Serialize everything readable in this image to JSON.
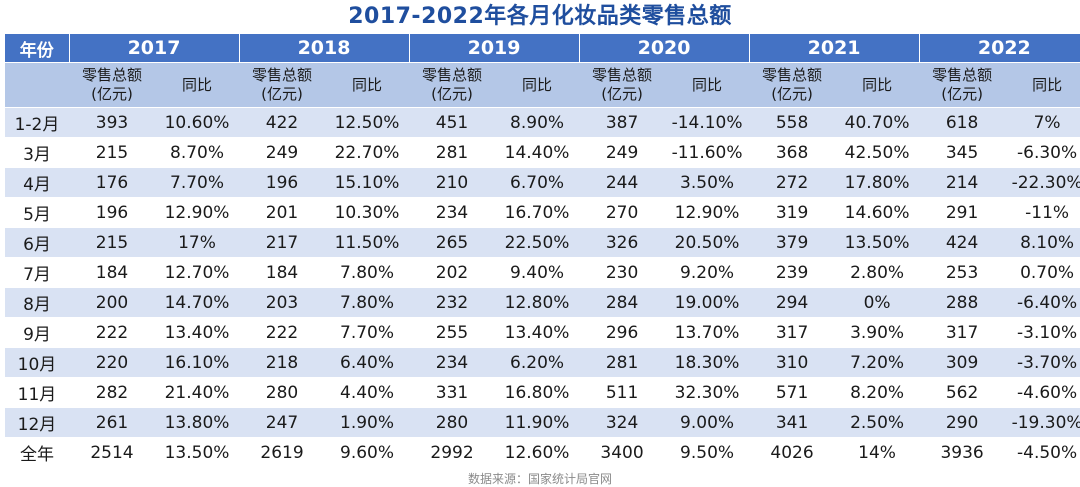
{
  "title": "2017-2022年各月化妆品类零售总额",
  "header": {
    "corner_label": "年份",
    "years": [
      "2017",
      "2018",
      "2019",
      "2020",
      "2021",
      "2022"
    ],
    "value_label_line1": "零售总额",
    "value_label_line2": "(亿元)",
    "yoy_label": "同比"
  },
  "rows": [
    {
      "month": "1-2月",
      "cells": [
        "393",
        "10.60%",
        "422",
        "12.50%",
        "451",
        "8.90%",
        "387",
        "-14.10%",
        "558",
        "40.70%",
        "618",
        "7%"
      ]
    },
    {
      "month": "3月",
      "cells": [
        "215",
        "8.70%",
        "249",
        "22.70%",
        "281",
        "14.40%",
        "249",
        "-11.60%",
        "368",
        "42.50%",
        "345",
        "-6.30%"
      ]
    },
    {
      "month": "4月",
      "cells": [
        "176",
        "7.70%",
        "196",
        "15.10%",
        "210",
        "6.70%",
        "244",
        "3.50%",
        "272",
        "17.80%",
        "214",
        "-22.30%"
      ]
    },
    {
      "month": "5月",
      "cells": [
        "196",
        "12.90%",
        "201",
        "10.30%",
        "234",
        "16.70%",
        "270",
        "12.90%",
        "319",
        "14.60%",
        "291",
        "-11%"
      ]
    },
    {
      "month": "6月",
      "cells": [
        "215",
        "17%",
        "217",
        "11.50%",
        "265",
        "22.50%",
        "326",
        "20.50%",
        "379",
        "13.50%",
        "424",
        "8.10%"
      ]
    },
    {
      "month": "7月",
      "cells": [
        "184",
        "12.70%",
        "184",
        "7.80%",
        "202",
        "9.40%",
        "230",
        "9.20%",
        "239",
        "2.80%",
        "253",
        "0.70%"
      ]
    },
    {
      "month": "8月",
      "cells": [
        "200",
        "14.70%",
        "203",
        "7.80%",
        "232",
        "12.80%",
        "284",
        "19.00%",
        "294",
        "0%",
        "288",
        "-6.40%"
      ]
    },
    {
      "month": "9月",
      "cells": [
        "222",
        "13.40%",
        "222",
        "7.70%",
        "255",
        "13.40%",
        "296",
        "13.70%",
        "317",
        "3.90%",
        "317",
        "-3.10%"
      ]
    },
    {
      "month": "10月",
      "cells": [
        "220",
        "16.10%",
        "218",
        "6.40%",
        "234",
        "6.20%",
        "281",
        "18.30%",
        "310",
        "7.20%",
        "309",
        "-3.70%"
      ]
    },
    {
      "month": "11月",
      "cells": [
        "282",
        "21.40%",
        "280",
        "4.40%",
        "331",
        "16.80%",
        "511",
        "32.30%",
        "571",
        "8.20%",
        "562",
        "-4.60%"
      ]
    },
    {
      "month": "12月",
      "cells": [
        "261",
        "13.80%",
        "247",
        "1.90%",
        "280",
        "11.90%",
        "324",
        "9.00%",
        "341",
        "2.50%",
        "290",
        "-19.30%"
      ]
    },
    {
      "month": "全年",
      "cells": [
        "2514",
        "13.50%",
        "2619",
        "9.60%",
        "2992",
        "12.60%",
        "3400",
        "9.50%",
        "4026",
        "14%",
        "3936",
        "-4.50%"
      ]
    }
  ],
  "source": "数据来源：国家统计局官网",
  "colors": {
    "title": "#1f4e9e",
    "header_bg": "#4472c4",
    "subheader_bg": "#b4c7e7",
    "band_bg": "#d9e2f3"
  }
}
